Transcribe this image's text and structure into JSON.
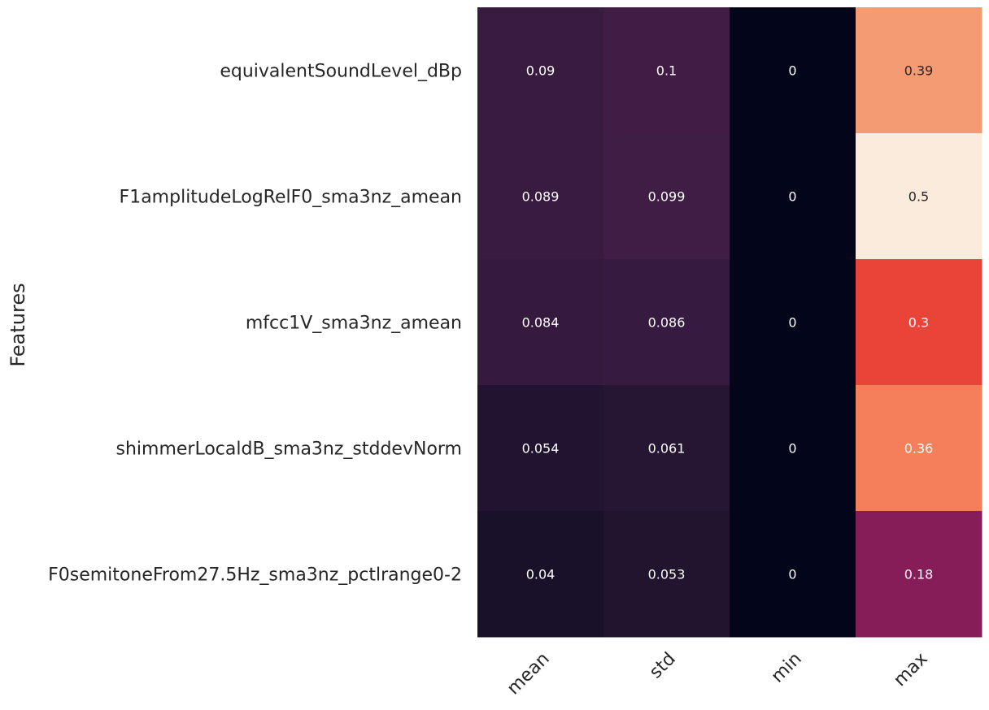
{
  "chart_data": {
    "type": "heatmap",
    "ylabel": "Features",
    "xlabel": "",
    "columns": [
      "mean",
      "std",
      "min",
      "max"
    ],
    "rows": [
      "equivalentSoundLevel_dBp",
      "F1amplitudeLogRelF0_sma3nz_amean",
      "mfcc1V_sma3nz_amean",
      "shimmerLocaldB_sma3nz_stddevNorm",
      "F0semitoneFrom27.5Hz_sma3nz_pctlrange0-2"
    ],
    "values": [
      [
        0.09,
        0.1,
        0,
        0.39
      ],
      [
        0.089,
        0.099,
        0,
        0.5
      ],
      [
        0.084,
        0.086,
        0,
        0.3
      ],
      [
        0.054,
        0.061,
        0,
        0.36
      ],
      [
        0.04,
        0.053,
        0,
        0.18
      ]
    ],
    "value_labels": [
      [
        "0.09",
        "0.1",
        "0",
        "0.39"
      ],
      [
        "0.089",
        "0.099",
        "0",
        "0.5"
      ],
      [
        "0.084",
        "0.086",
        "0",
        "0.3"
      ],
      [
        "0.054",
        "0.061",
        "0",
        "0.36"
      ],
      [
        "0.04",
        "0.053",
        "0",
        "0.18"
      ]
    ],
    "vmin": 0,
    "vmax": 0.5,
    "colormap": "rocket",
    "colorbar": false
  }
}
